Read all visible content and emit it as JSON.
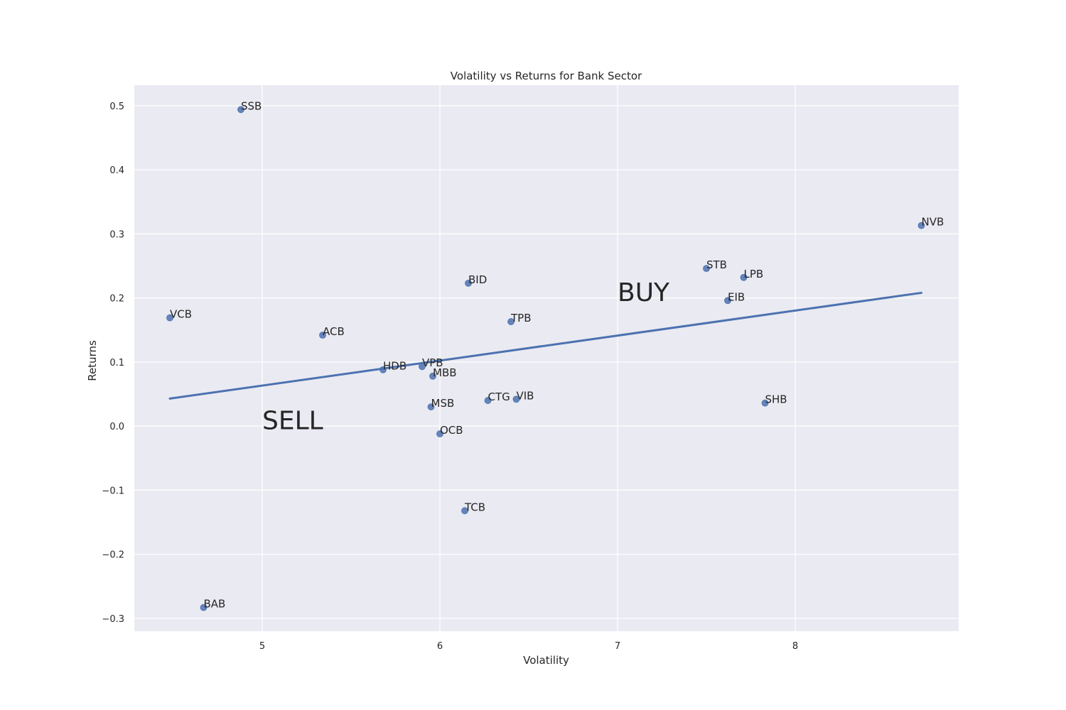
{
  "chart_data": {
    "type": "scatter",
    "title": "Volatility vs Returns for Bank Sector",
    "xlabel": "Volatility",
    "ylabel": "Returns",
    "xlim": [
      4.28,
      8.92
    ],
    "ylim": [
      -0.32,
      0.532
    ],
    "xticks": [
      5,
      6,
      7,
      8
    ],
    "yticks": [
      0.5,
      0.4,
      0.3,
      0.2,
      0.1,
      0.0,
      -0.1,
      -0.2,
      -0.3
    ],
    "ytick_labels": [
      "0.5",
      "0.4",
      "0.3",
      "0.2",
      "0.1",
      "0.0",
      "−0.1",
      "−0.2",
      "−0.3"
    ],
    "grid": true,
    "colors": {
      "background": "#eaeaf2",
      "points": "#4c72b0",
      "trendline": "#4c72b0"
    },
    "points": [
      {
        "label": "SSB",
        "x": 4.88,
        "y": 0.494
      },
      {
        "label": "VCB",
        "x": 4.48,
        "y": 0.169
      },
      {
        "label": "ACB",
        "x": 5.34,
        "y": 0.142
      },
      {
        "label": "HDB",
        "x": 5.68,
        "y": 0.088
      },
      {
        "label": "VPB",
        "x": 5.9,
        "y": 0.093
      },
      {
        "label": "MBB",
        "x": 5.96,
        "y": 0.078
      },
      {
        "label": "MSB",
        "x": 5.95,
        "y": 0.03
      },
      {
        "label": "OCB",
        "x": 6.0,
        "y": -0.012
      },
      {
        "label": "BID",
        "x": 6.16,
        "y": 0.223
      },
      {
        "label": "TPB",
        "x": 6.4,
        "y": 0.163
      },
      {
        "label": "CTG",
        "x": 6.27,
        "y": 0.04
      },
      {
        "label": "VIB",
        "x": 6.43,
        "y": 0.042
      },
      {
        "label": "TCB",
        "x": 6.14,
        "y": -0.132
      },
      {
        "label": "BAB",
        "x": 4.67,
        "y": -0.283
      },
      {
        "label": "STB",
        "x": 7.5,
        "y": 0.246
      },
      {
        "label": "LPB",
        "x": 7.71,
        "y": 0.232
      },
      {
        "label": "EIB",
        "x": 7.62,
        "y": 0.196
      },
      {
        "label": "SHB",
        "x": 7.83,
        "y": 0.036
      },
      {
        "label": "NVB",
        "x": 8.71,
        "y": 0.313
      }
    ],
    "trendline": {
      "x": [
        4.48,
        8.71
      ],
      "y": [
        0.043,
        0.208
      ]
    },
    "annotations": [
      {
        "text": "BUY",
        "x": 7.0,
        "y": 0.195
      },
      {
        "text": "SELL",
        "x": 5.0,
        "y": -0.005
      }
    ]
  }
}
